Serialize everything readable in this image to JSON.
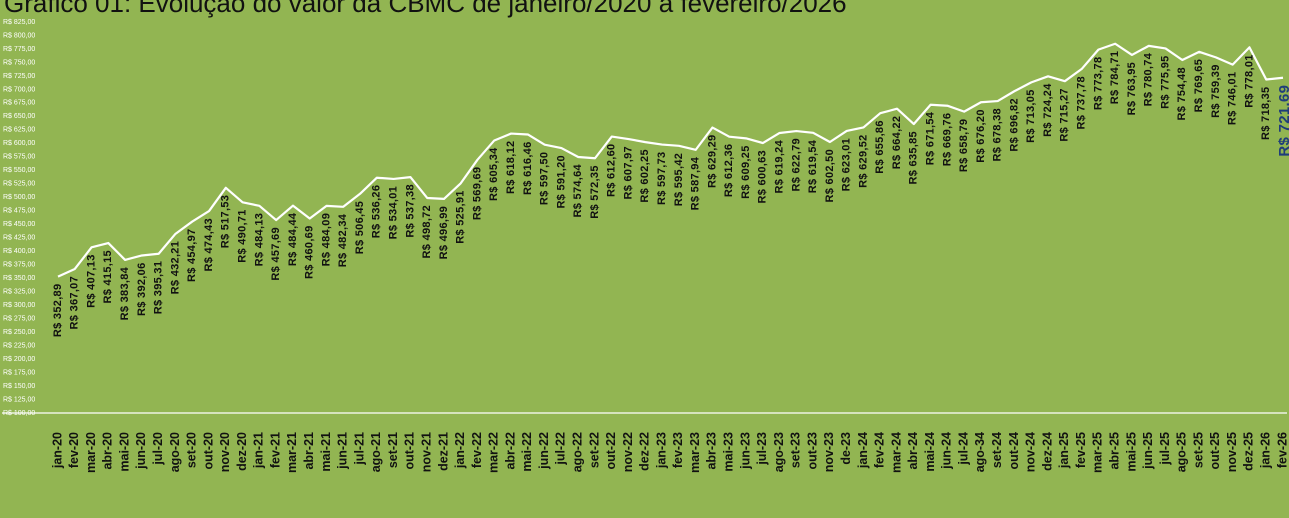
{
  "chart_data": {
    "type": "line",
    "title": "Gráfico 01: Evolução do valor da CBMC de janeiro/2020 a fevereiro/2026",
    "categories": [
      "jan-20",
      "fev-20",
      "mar-20",
      "abr-20",
      "mai-20",
      "jun-20",
      "jul-20",
      "ago-20",
      "set-20",
      "out-20",
      "nov-20",
      "dez-20",
      "jan-21",
      "fev-21",
      "mar-21",
      "abr-21",
      "mai-21",
      "jun-21",
      "jul-21",
      "ago-21",
      "set-21",
      "out-21",
      "nov-21",
      "dez-21",
      "jan-22",
      "fev-22",
      "mar-22",
      "abr-22",
      "mai-22",
      "jun-22",
      "jul-22",
      "ago-22",
      "set-22",
      "out-22",
      "nov-22",
      "dez-22",
      "jan-23",
      "fev-23",
      "mar-23",
      "abr-23",
      "mai-23",
      "jun-23",
      "jul-23",
      "ago-23",
      "set-23",
      "out-23",
      "nov-23",
      "de-23",
      "jan-24",
      "fev-24",
      "mar-24",
      "abr-24",
      "mai-24",
      "jun-24",
      "jul-24",
      "ago-34",
      "set-24",
      "out-24",
      "nov-24",
      "dez-24",
      "jan-25",
      "fev-25",
      "mar-25",
      "abr-25",
      "mai-25",
      "jun-25",
      "jul-25",
      "ago-25",
      "set-25",
      "out-25",
      "nov-25",
      "dez-25",
      "jan-26",
      "fev-26"
    ],
    "values": [
      352.89,
      367.07,
      407.13,
      415.15,
      383.84,
      392.06,
      395.31,
      432.21,
      454.97,
      474.43,
      517.53,
      490.71,
      484.13,
      457.69,
      484.44,
      460.69,
      484.09,
      482.34,
      506.45,
      536.26,
      534.01,
      537.38,
      498.72,
      496.99,
      525.91,
      569.69,
      605.34,
      618.12,
      616.46,
      597.5,
      591.2,
      574.64,
      572.35,
      612.6,
      607.97,
      602.25,
      597.73,
      595.42,
      587.94,
      629.29,
      612.36,
      609.25,
      600.63,
      619.24,
      622.79,
      619.54,
      602.5,
      623.01,
      629.52,
      655.86,
      664.22,
      635.85,
      671.54,
      669.76,
      658.79,
      676.2,
      678.38,
      696.82,
      713.05,
      724.24,
      715.27,
      737.78,
      773.78,
      784.71,
      763.95,
      780.74,
      775.95,
      754.48,
      769.65,
      759.39,
      746.01,
      778.01,
      718.35,
      721.69
    ],
    "value_labels": [
      "R$ 352,89",
      "R$ 367,07",
      "R$ 407,13",
      "R$ 415,15",
      "R$ 383,84",
      "R$ 392,06",
      "R$ 395,31",
      "R$ 432,21",
      "R$ 454,97",
      "R$ 474,43",
      "R$ 517,53",
      "R$ 490,71",
      "R$ 484,13",
      "R$ 457,69",
      "R$ 484,44",
      "R$ 460,69",
      "R$ 484,09",
      "R$ 482,34",
      "R$ 506,45",
      "R$ 536,26",
      "R$ 534,01",
      "R$ 537,38",
      "R$ 498,72",
      "R$ 496,99",
      "R$ 525,91",
      "R$ 569,69",
      "R$ 605,34",
      "R$ 618,12",
      "R$ 616,46",
      "R$ 597,50",
      "R$ 591,20",
      "R$ 574,64",
      "R$ 572,35",
      "R$ 612,60",
      "R$ 607,97",
      "R$ 602,25",
      "R$ 597,73",
      "R$ 595,42",
      "R$ 587,94",
      "R$ 629,29",
      "R$ 612,36",
      "R$ 609,25",
      "R$ 600,63",
      "R$ 619,24",
      "R$ 622,79",
      "R$ 619,54",
      "R$ 602,50",
      "R$ 623,01",
      "R$ 629,52",
      "R$ 655,86",
      "R$ 664,22",
      "R$ 635,85",
      "R$ 671,54",
      "R$ 669,76",
      "R$ 658,79",
      "R$ 676,20",
      "R$ 678,38",
      "R$ 696,82",
      "R$ 713,05",
      "R$ 724,24",
      "R$ 715,27",
      "R$ 737,78",
      "R$ 773,78",
      "R$ 784,71",
      "R$ 763,95",
      "R$ 780,74",
      "R$ 775,95",
      "R$ 754,48",
      "R$ 769,65",
      "R$ 759,39",
      "R$ 746,01",
      "R$ 778,01",
      "R$ 718,35",
      "R$ 721,69"
    ],
    "color": "#ffffff",
    "ylim": [
      100,
      825
    ],
    "yticks": [
      {
        "value": 100,
        "label": "R$ 100,00"
      },
      {
        "value": 125,
        "label": "R$ 125,00"
      },
      {
        "value": 150,
        "label": "R$ 150,00"
      },
      {
        "value": 175,
        "label": "R$ 175,00"
      },
      {
        "value": 200,
        "label": "R$ 200,00"
      },
      {
        "value": 225,
        "label": "R$ 225,00"
      },
      {
        "value": 250,
        "label": "R$ 250,00"
      },
      {
        "value": 275,
        "label": "R$ 275,00"
      },
      {
        "value": 300,
        "label": "R$ 300,00"
      },
      {
        "value": 325,
        "label": "R$ 325,00"
      },
      {
        "value": 350,
        "label": "R$ 350,00"
      },
      {
        "value": 375,
        "label": "R$ 375,00"
      },
      {
        "value": 400,
        "label": "R$ 400,00"
      },
      {
        "value": 425,
        "label": "R$ 425,00"
      },
      {
        "value": 450,
        "label": "R$ 450,00"
      },
      {
        "value": 475,
        "label": "R$ 475,00"
      },
      {
        "value": 500,
        "label": "R$ 500,00"
      },
      {
        "value": 525,
        "label": "R$ 525,00"
      },
      {
        "value": 550,
        "label": "R$ 550,00"
      },
      {
        "value": 575,
        "label": "R$ 575,00"
      },
      {
        "value": 600,
        "label": "R$ 600,00"
      },
      {
        "value": 625,
        "label": "R$ 625,00"
      },
      {
        "value": 650,
        "label": "R$ 650,00"
      },
      {
        "value": 675,
        "label": "R$ 675,00"
      },
      {
        "value": 700,
        "label": "R$ 700,00"
      },
      {
        "value": 725,
        "label": "R$ 725,00"
      },
      {
        "value": 750,
        "label": "R$ 750,00"
      },
      {
        "value": 775,
        "label": "R$ 775,00"
      },
      {
        "value": 800,
        "label": "R$ 800,00"
      },
      {
        "value": 825,
        "label": "R$ 825,00"
      }
    ],
    "grid": false
  }
}
